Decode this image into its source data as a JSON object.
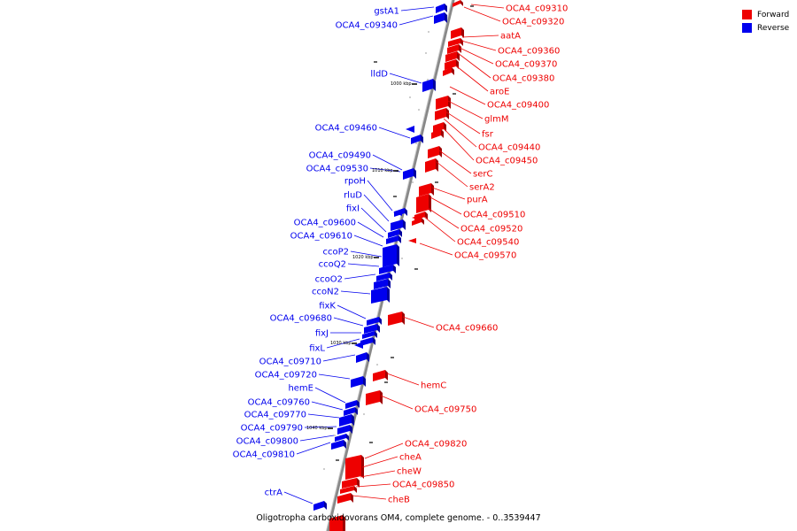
{
  "colors": {
    "forward": "#ee0000",
    "reverse": "#0000ee",
    "backbone": "#888888"
  },
  "legend": [
    {
      "label": "Forward",
      "color": "#ee0000"
    },
    {
      "label": "Reverse",
      "color": "#0000ee"
    }
  ],
  "caption": "Oligotropha carboxidovorans OM4, complete genome. - 0..3539447",
  "ticks": [
    "1000 kbp",
    "1010 kbp",
    "1020 kbp",
    "1030 kbp",
    "1040 kbp"
  ],
  "forward_genes": [
    "OCA4_c09310",
    "OCA4_c09320",
    "aatA",
    "OCA4_c09360",
    "OCA4_c09370",
    "OCA4_c09380",
    "aroE",
    "OCA4_c09400",
    "glmM",
    "fsr",
    "OCA4_c09440",
    "OCA4_c09450",
    "serC",
    "serA2",
    "purA",
    "OCA4_c09510",
    "OCA4_c09520",
    "OCA4_c09540",
    "OCA4_c09570",
    "OCA4_c09660",
    "hemC",
    "OCA4_c09750",
    "OCA4_c09820",
    "cheA",
    "cheW",
    "OCA4_c09850",
    "cheB"
  ],
  "reverse_genes": [
    "gstA1",
    "OCA4_c09340",
    "lldD",
    "OCA4_c09460",
    "OCA4_c09490",
    "OCA4_c09530",
    "rpoH",
    "rluD",
    "fixI",
    "OCA4_c09600",
    "OCA4_c09610",
    "ccoP2",
    "ccoQ2",
    "ccoO2",
    "ccoN2",
    "fixK",
    "OCA4_c09680",
    "fixJ",
    "fixL",
    "OCA4_c09710",
    "OCA4_c09720",
    "hemE",
    "OCA4_c09760",
    "OCA4_c09770",
    "OCA4_c09790",
    "OCA4_c09800",
    "OCA4_c09810",
    "ctrA"
  ]
}
